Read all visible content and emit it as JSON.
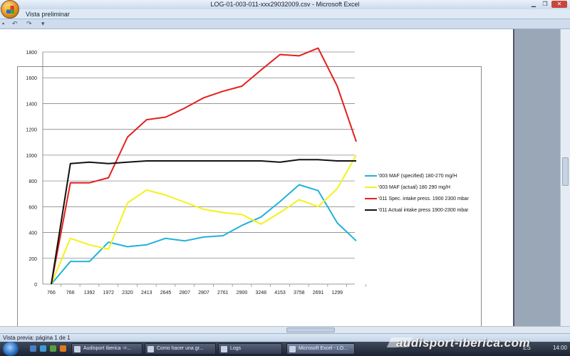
{
  "window": {
    "title": "LOG-01-003-011-xxx29032009.csv - Microsoft Excel"
  },
  "ribbon": {
    "tab_label": "Vista preliminar"
  },
  "status": {
    "text": "Vista previa: página 1 de 1"
  },
  "taskbar": {
    "items": [
      {
        "label": "Audisport Iberica ->..."
      },
      {
        "label": "Como hacer una gr..."
      },
      {
        "label": "Logs"
      },
      {
        "label": "Microsoft Excel - LO..."
      }
    ],
    "lang": "ES",
    "time": "14:00"
  },
  "watermark": "audisport-iberica.com",
  "chart_data": {
    "type": "line",
    "categories": [
      "766",
      "766",
      "1392",
      "1972",
      "2320",
      "2413",
      "2645",
      "2807",
      "2807",
      "2761",
      "2900",
      "3248",
      "4153",
      "3758",
      "2691",
      "1299",
      ""
    ],
    "ylim": [
      0,
      1800
    ],
    "yticks": [
      "0",
      "200",
      "400",
      "600",
      "800",
      "1000",
      "1200",
      "1400",
      "1600",
      "1800"
    ],
    "grid": true,
    "legend_position": "right",
    "series": [
      {
        "name": "'003 MAF (specified) 180-270 mg/H",
        "color": "#1fb3d8",
        "values": [
          0,
          175,
          175,
          325,
          290,
          305,
          355,
          335,
          365,
          375,
          455,
          520,
          640,
          770,
          725,
          475,
          335
        ]
      },
      {
        "name": "'003 MAF (actual) 180 290 mg/H",
        "color": "#f2f21a",
        "values": [
          0,
          355,
          305,
          270,
          630,
          730,
          690,
          635,
          580,
          555,
          540,
          465,
          555,
          655,
          600,
          740,
          1000
        ]
      },
      {
        "name": "'011 Spec. intake press. 1900 2300 mbar",
        "color": "#e3201c",
        "values": [
          0,
          785,
          785,
          825,
          1140,
          1275,
          1295,
          1365,
          1445,
          1495,
          1535,
          1660,
          1780,
          1770,
          1830,
          1535,
          1105
        ]
      },
      {
        "name": "'011 Actual intake press 1900-2300 mbar",
        "color": "#111111",
        "values": [
          0,
          935,
          945,
          935,
          945,
          955,
          955,
          955,
          955,
          955,
          955,
          955,
          945,
          965,
          965,
          955,
          955
        ]
      }
    ]
  }
}
